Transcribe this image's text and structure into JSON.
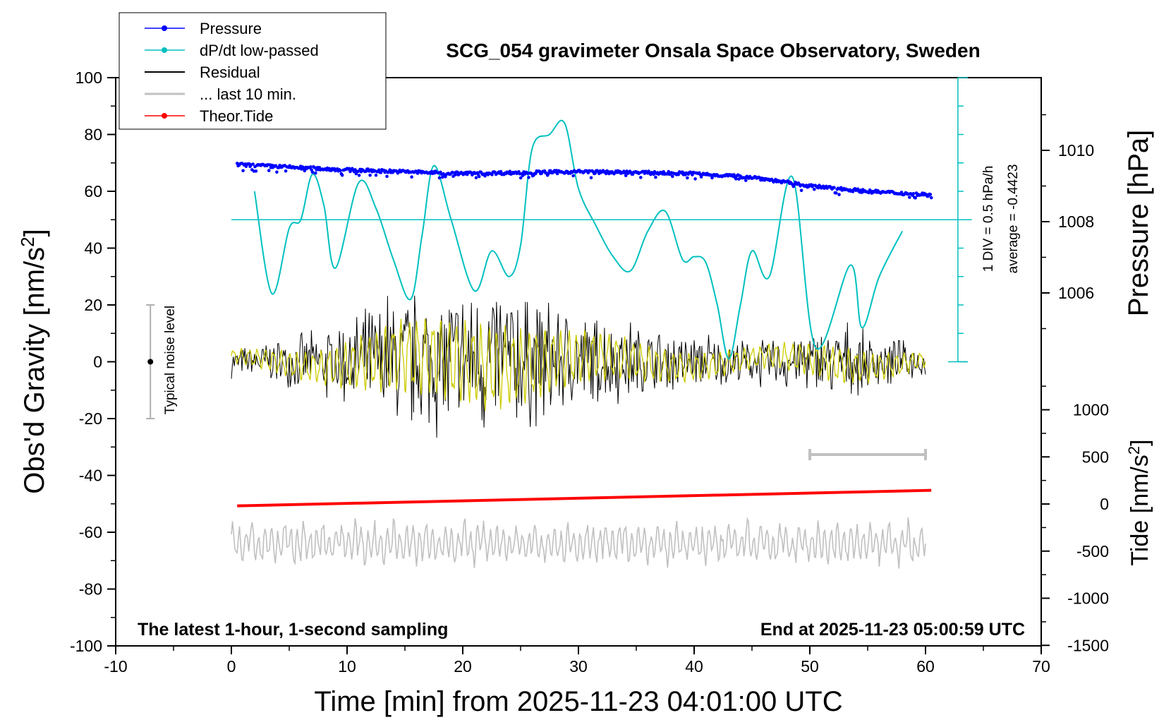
{
  "chart_data": {
    "type": "line",
    "title": "SCG_054 gravimeter Onsala Space Observatory, Sweden",
    "xlabel": "Time [min] from 2025-11-23 04:01:00 UTC",
    "ylabel_left_main": "Obs'd Gravity [nm/s",
    "ylabel_left_sup": "2",
    "ylabel_left_end": "]",
    "ylabel_right_pressure": "Pressure [hPa]",
    "ylabel_right_tide_main": "Tide [nm/s",
    "ylabel_right_tide_sup": "2",
    "ylabel_right_tide_end": "]",
    "xlim": [
      -10,
      70
    ],
    "ylim": [
      -100,
      100
    ],
    "x_ticks": [
      "-10",
      "0",
      "10",
      "20",
      "30",
      "40",
      "50",
      "60",
      "70"
    ],
    "y_ticks": [
      "-100",
      "-80",
      "-60",
      "-40",
      "-20",
      "0",
      "20",
      "40",
      "60",
      "80",
      "100"
    ],
    "pressure_ticks": [
      "1006",
      "1008",
      "1010"
    ],
    "tide_ticks": [
      "-1500",
      "-1000",
      "-500",
      "0",
      "500",
      "1000"
    ],
    "annotation_left": "The latest 1-hour, 1-second sampling",
    "annotation_right": "End at 2025-11-23 05:00:59 UTC",
    "noise_label": "Typical noise level",
    "dpdt_scale_label": "1 DIV = 0.5 hPa/h",
    "dpdt_average_label": "average = -0.4423",
    "legend": [
      {
        "label": "Pressure",
        "color": "#0000ff",
        "marker": true
      },
      {
        "label": "dP/dt low-passed",
        "color": "#00c0c0",
        "marker": true
      },
      {
        "label": "Residual",
        "color": "#000000",
        "marker": false
      },
      {
        "label": "... last 10 min.",
        "color": "#c0c0c0",
        "marker": false
      },
      {
        "label": "Theor.Tide",
        "color": "#ff0000",
        "marker": true
      }
    ],
    "series": [
      {
        "name": "Pressure",
        "unit": "hPa",
        "x": [
          0.5,
          10,
          20,
          30,
          40,
          45,
          50,
          55,
          60.5
        ],
        "values": [
          1009.6,
          1009.45,
          1009.35,
          1009.4,
          1009.35,
          1009.25,
          1009.0,
          1008.85,
          1008.75
        ]
      },
      {
        "name": "dP/dt low-passed",
        "unit": "gravity-axis",
        "x": [
          2,
          3.5,
          5,
          6,
          7,
          8,
          9,
          11,
          12.5,
          14,
          15.5,
          16.5,
          17.5,
          19,
          21,
          22.5,
          24,
          25,
          26,
          27.5,
          28.8,
          30,
          31.5,
          33,
          34.5,
          36,
          37.5,
          39,
          40,
          41,
          42,
          43,
          44,
          45,
          46.5,
          48.5,
          50.5,
          53.5,
          54.5,
          56,
          58
        ],
        "values": [
          60,
          24,
          47,
          50,
          66,
          55,
          33,
          63,
          54,
          36,
          22,
          45,
          69,
          50,
          25,
          39,
          30,
          41,
          75,
          80,
          84,
          61,
          48,
          37,
          32,
          46,
          53,
          36,
          37,
          35,
          20,
          1,
          20,
          39,
          30,
          65,
          5,
          34,
          12,
          30,
          46
        ]
      },
      {
        "name": "Residual",
        "unit": "nm/s2",
        "x": [
          0,
          60
        ],
        "envelope": [
          5,
          12,
          28,
          32,
          20,
          12,
          8,
          14,
          6
        ]
      },
      {
        "name": "... last 10 min.",
        "unit": "gravity-axis",
        "x": [
          0,
          60
        ],
        "mean": -64,
        "amplitude": 7
      },
      {
        "name": "Theor.Tide",
        "unit": "nm/s2",
        "x": [
          0.5,
          60.5
        ],
        "values": [
          -20,
          145
        ]
      }
    ],
    "noise_level": {
      "x": -7,
      "center": 0,
      "range": [
        -20,
        20
      ]
    },
    "dpdt_reference_level": 50,
    "last_10min_marker": {
      "x": [
        50,
        60
      ]
    }
  }
}
